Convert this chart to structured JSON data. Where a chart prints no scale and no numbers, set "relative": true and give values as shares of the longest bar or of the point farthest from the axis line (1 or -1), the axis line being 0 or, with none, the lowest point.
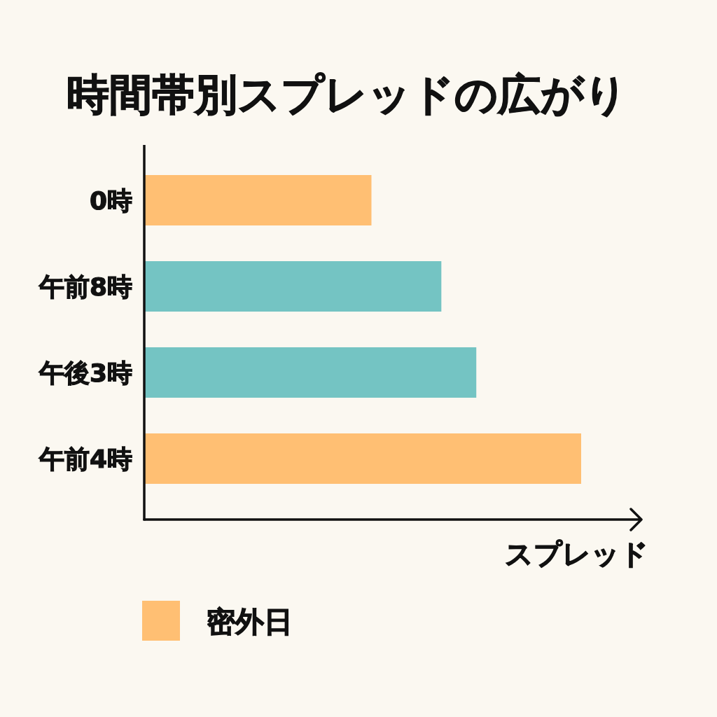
{
  "chart_data": {
    "type": "bar",
    "title": "時間帯別スプレッドの広がり",
    "xlabel": "スプレッド",
    "orientation": "horizontal",
    "relative": true,
    "stacked": true,
    "legend": "bottom left",
    "categories": [
      "0時",
      "午前8時",
      "午後3時",
      "午前4時"
    ],
    "series": [
      {
        "name": "密外日",
        "color": "#ffbf73",
        "values": [
          0.52,
          null,
          null,
          1
        ]
      },
      {
        "color": "#74c4c3",
        "values": [
          null,
          0.68,
          0.76,
          null
        ]
      }
    ]
  }
}
